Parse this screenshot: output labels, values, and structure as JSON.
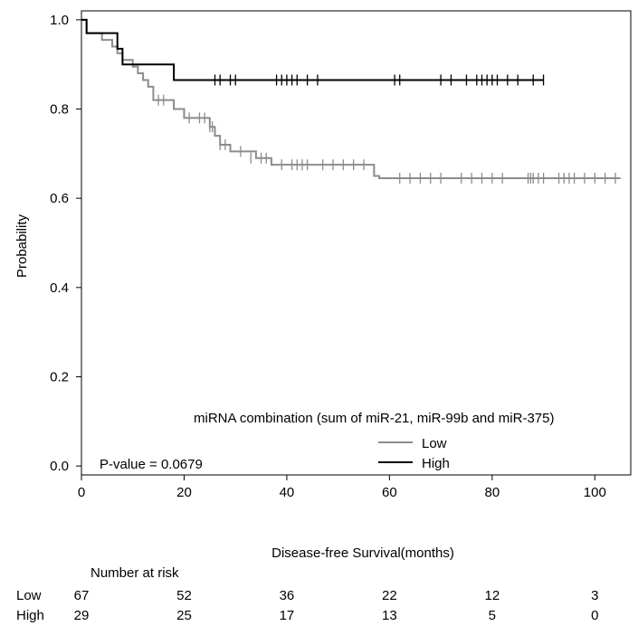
{
  "chart_data": {
    "type": "line",
    "subtype": "kaplan-meier",
    "title": "",
    "xlabel": "Disease-free Survival(months)",
    "ylabel": "Probability",
    "xlim": [
      0,
      107
    ],
    "ylim": [
      -0.02,
      1.02
    ],
    "xticks": [
      0,
      20,
      40,
      60,
      80,
      100
    ],
    "xtick_labels": [
      "0",
      "20",
      "40",
      "60",
      "80",
      "100"
    ],
    "yticks": [
      0.0,
      0.2,
      0.4,
      0.6,
      0.8,
      1.0
    ],
    "ytick_labels": [
      "0.0",
      "0.2",
      "0.4",
      "0.6",
      "0.8",
      "1.0"
    ],
    "grid": false,
    "legend": {
      "title": "miRNA combination (sum of miR-21, miR-99b and miR-375)",
      "placement": "bottom-right"
    },
    "annotation": "P-value = 0.0679",
    "series": [
      {
        "name": "Low",
        "color": "#8c8c8c",
        "steps": [
          [
            0,
            1.0
          ],
          [
            1,
            0.97
          ],
          [
            4,
            0.955
          ],
          [
            6,
            0.94
          ],
          [
            7,
            0.925
          ],
          [
            8,
            0.91
          ],
          [
            10,
            0.895
          ],
          [
            11,
            0.88
          ],
          [
            12,
            0.865
          ],
          [
            13,
            0.85
          ],
          [
            14,
            0.82
          ],
          [
            18,
            0.8
          ],
          [
            20,
            0.78
          ],
          [
            25,
            0.76
          ],
          [
            26,
            0.74
          ],
          [
            27,
            0.72
          ],
          [
            29,
            0.705
          ],
          [
            34,
            0.69
          ],
          [
            37,
            0.675
          ],
          [
            57,
            0.65
          ],
          [
            58,
            0.645
          ],
          [
            105,
            0.645
          ]
        ],
        "censored": [
          [
            15,
            0.82
          ],
          [
            16,
            0.82
          ],
          [
            21,
            0.78
          ],
          [
            23,
            0.78
          ],
          [
            24,
            0.78
          ],
          [
            25,
            0.76
          ],
          [
            25.5,
            0.76
          ],
          [
            27,
            0.72
          ],
          [
            28,
            0.72
          ],
          [
            31,
            0.705
          ],
          [
            33,
            0.69
          ],
          [
            35,
            0.69
          ],
          [
            36,
            0.69
          ],
          [
            39,
            0.675
          ],
          [
            41,
            0.675
          ],
          [
            42,
            0.675
          ],
          [
            43,
            0.675
          ],
          [
            44,
            0.675
          ],
          [
            47,
            0.675
          ],
          [
            49,
            0.675
          ],
          [
            51,
            0.675
          ],
          [
            53,
            0.675
          ],
          [
            55,
            0.675
          ],
          [
            62,
            0.645
          ],
          [
            64,
            0.645
          ],
          [
            66,
            0.645
          ],
          [
            68,
            0.645
          ],
          [
            70,
            0.645
          ],
          [
            74,
            0.645
          ],
          [
            76,
            0.645
          ],
          [
            78,
            0.645
          ],
          [
            80,
            0.645
          ],
          [
            82,
            0.645
          ],
          [
            87,
            0.645
          ],
          [
            87.5,
            0.645
          ],
          [
            88,
            0.645
          ],
          [
            89,
            0.645
          ],
          [
            90,
            0.645
          ],
          [
            93,
            0.645
          ],
          [
            94,
            0.645
          ],
          [
            95,
            0.645
          ],
          [
            96,
            0.645
          ],
          [
            98,
            0.645
          ],
          [
            100,
            0.645
          ],
          [
            102,
            0.645
          ],
          [
            104,
            0.645
          ]
        ]
      },
      {
        "name": "High",
        "color": "#000000",
        "steps": [
          [
            0,
            1.0
          ],
          [
            1,
            0.97
          ],
          [
            7,
            0.935
          ],
          [
            8,
            0.9
          ],
          [
            18,
            0.865
          ],
          [
            90,
            0.865
          ]
        ],
        "censored": [
          [
            26,
            0.865
          ],
          [
            27,
            0.865
          ],
          [
            29,
            0.865
          ],
          [
            30,
            0.865
          ],
          [
            38,
            0.865
          ],
          [
            39,
            0.865
          ],
          [
            40,
            0.865
          ],
          [
            41,
            0.865
          ],
          [
            42,
            0.865
          ],
          [
            44,
            0.865
          ],
          [
            46,
            0.865
          ],
          [
            61,
            0.865
          ],
          [
            62,
            0.865
          ],
          [
            70,
            0.865
          ],
          [
            72,
            0.865
          ],
          [
            75,
            0.865
          ],
          [
            77,
            0.865
          ],
          [
            78,
            0.865
          ],
          [
            79,
            0.865
          ],
          [
            80,
            0.865
          ],
          [
            81,
            0.865
          ],
          [
            83,
            0.865
          ],
          [
            85,
            0.865
          ],
          [
            88,
            0.865
          ],
          [
            90,
            0.865
          ]
        ]
      }
    ],
    "risk_table": {
      "header": "Number at risk",
      "times": [
        0,
        20,
        40,
        60,
        80,
        100
      ],
      "rows": [
        {
          "label": "Low",
          "counts": [
            "67",
            "52",
            "36",
            "22",
            "12",
            "3"
          ]
        },
        {
          "label": "High",
          "counts": [
            "29",
            "25",
            "17",
            "13",
            "5",
            "0"
          ]
        }
      ]
    }
  }
}
